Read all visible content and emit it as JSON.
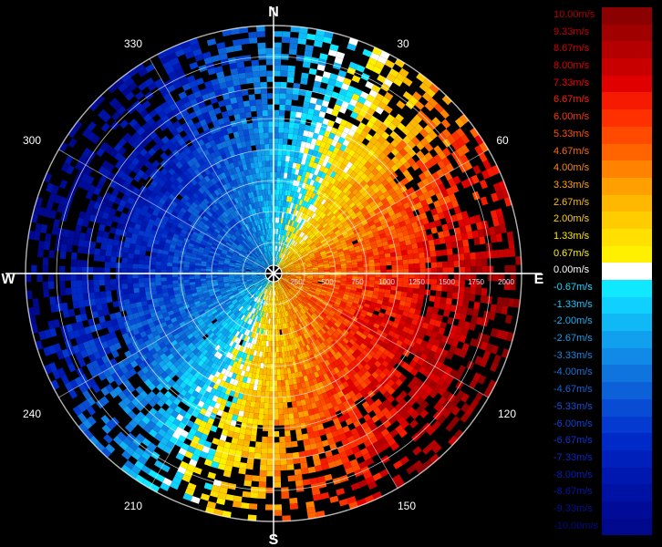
{
  "chart_data": {
    "type": "polar-radar",
    "title": "",
    "cardinals": {
      "north": "N",
      "south": "S",
      "east": "E",
      "west": "W"
    },
    "bearing_labels": [
      "30",
      "60",
      "120",
      "150",
      "210",
      "240",
      "300",
      "330"
    ],
    "range_labels": [
      "250",
      "500",
      "750",
      "1000",
      "1250",
      "1500",
      "1750",
      "2000"
    ],
    "range_max": 2000,
    "velocity_unit": "m/s",
    "field": {
      "description_values": "Doppler radial velocity, positive east/south-east, negative west/north-west",
      "max_positive": 10.0,
      "max_negative": -10.0
    },
    "legend": [
      {
        "label": "10.00m/s",
        "value": 10.0,
        "color": "#8b0000",
        "text_color": "#b20000"
      },
      {
        "label": "9.33m/s",
        "value": 9.33,
        "color": "#a00000",
        "text_color": "#c00000"
      },
      {
        "label": "8.67m/s",
        "value": 8.67,
        "color": "#b40000",
        "text_color": "#d00000"
      },
      {
        "label": "8.00m/s",
        "value": 8.0,
        "color": "#c80000",
        "text_color": "#e00000"
      },
      {
        "label": "7.33m/s",
        "value": 7.33,
        "color": "#e00000",
        "text_color": "#f00000"
      },
      {
        "label": "6.67m/s",
        "value": 6.67,
        "color": "#f51a00",
        "text_color": "#ff2000"
      },
      {
        "label": "6.00m/s",
        "value": 6.0,
        "color": "#ff3000",
        "text_color": "#ff3a00"
      },
      {
        "label": "5.33m/s",
        "value": 5.33,
        "color": "#ff4a00",
        "text_color": "#ff5000"
      },
      {
        "label": "4.67m/s",
        "value": 4.67,
        "color": "#ff6400",
        "text_color": "#ff6a00"
      },
      {
        "label": "4.00m/s",
        "value": 4.0,
        "color": "#ff8200",
        "text_color": "#ff8a00"
      },
      {
        "label": "3.33m/s",
        "value": 3.33,
        "color": "#ffa000",
        "text_color": "#ffa500"
      },
      {
        "label": "2.67m/s",
        "value": 2.67,
        "color": "#ffb800",
        "text_color": "#ffbe00"
      },
      {
        "label": "2.00m/s",
        "value": 2.0,
        "color": "#ffcc00",
        "text_color": "#ffd200"
      },
      {
        "label": "1.33m/s",
        "value": 1.33,
        "color": "#ffe000",
        "text_color": "#ffe600"
      },
      {
        "label": "0.67m/s",
        "value": 0.67,
        "color": "#fff000",
        "text_color": "#fff200"
      },
      {
        "label": "0.00m/s",
        "value": 0.0,
        "color": "#ffffff",
        "text_color": "#ffffff"
      },
      {
        "label": "-0.67m/s",
        "value": -0.67,
        "color": "#10e8ff",
        "text_color": "#19d6ff"
      },
      {
        "label": "-1.33m/s",
        "value": -1.33,
        "color": "#10d0ff",
        "text_color": "#19c6ff"
      },
      {
        "label": "-2.00m/s",
        "value": -2.0,
        "color": "#10b8f5",
        "text_color": "#19b0f0"
      },
      {
        "label": "-2.67m/s",
        "value": -2.67,
        "color": "#10a0ee",
        "text_color": "#199ae8"
      },
      {
        "label": "-3.33m/s",
        "value": -3.33,
        "color": "#108ae6",
        "text_color": "#1a84e0"
      },
      {
        "label": "-4.00m/s",
        "value": -4.0,
        "color": "#1074de",
        "text_color": "#1a70d8"
      },
      {
        "label": "-4.67m/s",
        "value": -4.67,
        "color": "#0c60d8",
        "text_color": "#1660d8"
      },
      {
        "label": "-5.33m/s",
        "value": -5.33,
        "color": "#084cd4",
        "text_color": "#1250d6"
      },
      {
        "label": "-6.00m/s",
        "value": -6.0,
        "color": "#043ad0",
        "text_color": "#0e42d2"
      },
      {
        "label": "-6.67m/s",
        "value": -6.67,
        "color": "#002ac8",
        "text_color": "#0a34cc"
      },
      {
        "label": "-7.33m/s",
        "value": -7.33,
        "color": "#0020bc",
        "text_color": "#0628c2"
      },
      {
        "label": "-8.00m/s",
        "value": -8.0,
        "color": "#0018b0",
        "text_color": "#041eb4"
      },
      {
        "label": "-8.67m/s",
        "value": -8.67,
        "color": "#0012a4",
        "text_color": "#0218a4"
      },
      {
        "label": "-9.33m/s",
        "value": -9.33,
        "color": "#000c98",
        "text_color": "#001294"
      },
      {
        "label": "-10.00m/s",
        "value": -10.0,
        "color": "#00088c",
        "text_color": "#000c86"
      }
    ]
  }
}
